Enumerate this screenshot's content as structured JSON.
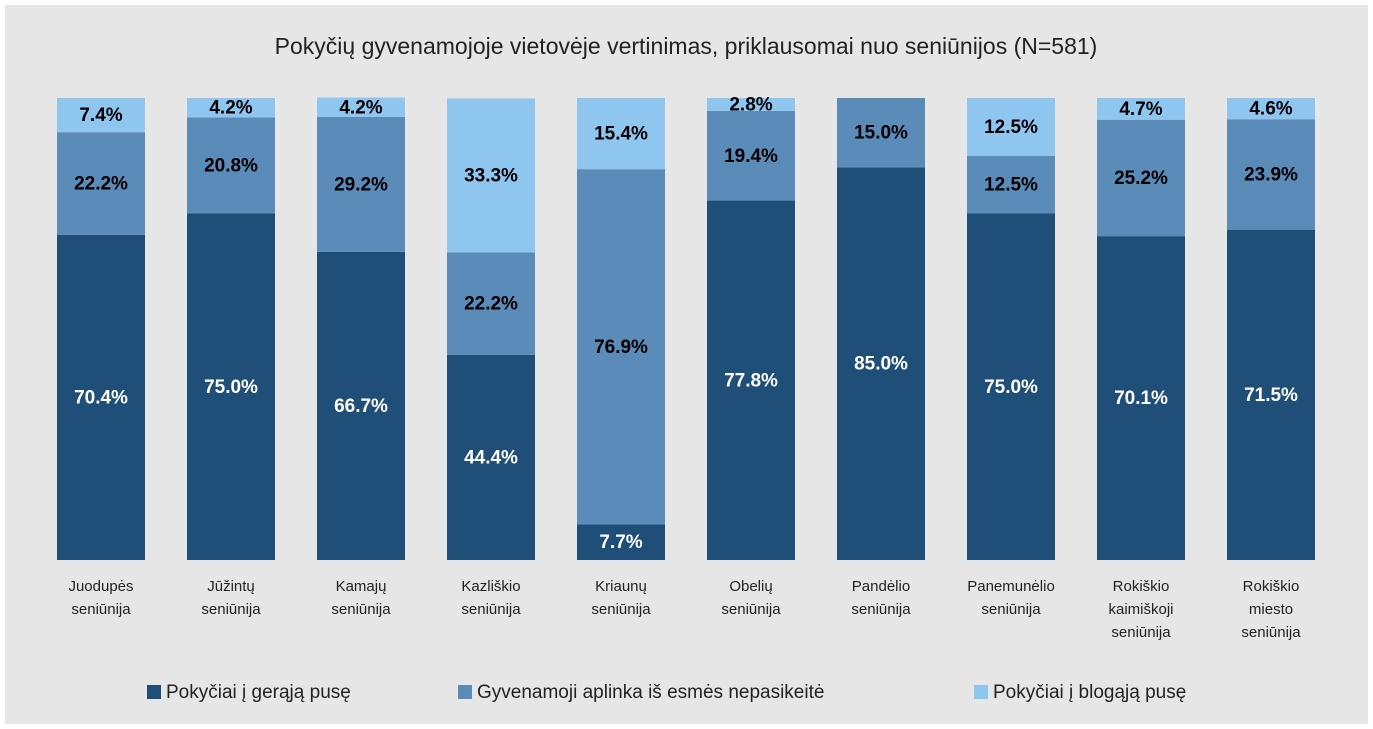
{
  "chart_data": {
    "type": "stacked_bar_100",
    "title": "Pokyčių gyvenamojoje vietovėje vertinimas, priklausomai nuo seniūnijos (N=581)",
    "categories": [
      [
        "Juodupės",
        "seniūnija"
      ],
      [
        "Jūžintų",
        "seniūnija"
      ],
      [
        "Kamajų",
        "seniūnija"
      ],
      [
        "Kazliškio",
        "seniūnija"
      ],
      [
        "Kriaunų",
        "seniūnija"
      ],
      [
        "Obelių",
        "seniūnija"
      ],
      [
        "Pandėlio",
        "seniūnija"
      ],
      [
        "Panemunėlio",
        "seniūnija"
      ],
      [
        "Rokiškio",
        "kaimiškoji",
        "seniūnija"
      ],
      [
        "Rokiškio",
        "miesto",
        "seniūnija"
      ]
    ],
    "series": [
      {
        "name": "Pokyčiai į gerąją pusę",
        "color": "#1f4e79",
        "label_color": "#ffffff",
        "values": [
          70.4,
          75.0,
          66.7,
          44.4,
          7.7,
          77.8,
          85.0,
          75.0,
          70.1,
          71.5
        ],
        "value_labels": [
          "70.4%",
          "75.0%",
          "66.7%",
          "44.4%",
          "7.7%",
          "77.8%",
          "85.0%",
          "75.0%",
          "70.1%",
          "71.5%"
        ]
      },
      {
        "name": "Gyvenamoji aplinka iš esmės nepasikeitė",
        "color": "#5b8bb8",
        "label_color": "#000000",
        "values": [
          22.2,
          20.8,
          29.2,
          22.2,
          76.9,
          19.4,
          15.0,
          12.5,
          25.2,
          23.9
        ],
        "value_labels": [
          "22.2%",
          "20.8%",
          "29.2%",
          "22.2%",
          "76.9%",
          "19.4%",
          "15.0%",
          "12.5%",
          "25.2%",
          "23.9%"
        ]
      },
      {
        "name": "Pokyčiai į blogąją pusę",
        "color": "#8fc6f0",
        "label_color": "#000000",
        "values": [
          7.4,
          4.2,
          4.2,
          33.3,
          15.4,
          2.8,
          null,
          12.5,
          4.7,
          4.6
        ],
        "value_labels": [
          "7.4%",
          "4.2%",
          "4.2%",
          "33.3%",
          "15.4%",
          "2.8%",
          null,
          "12.5%",
          "4.7%",
          "4.6%"
        ]
      }
    ],
    "ylim": [
      0,
      100
    ],
    "legend": "bottom"
  }
}
